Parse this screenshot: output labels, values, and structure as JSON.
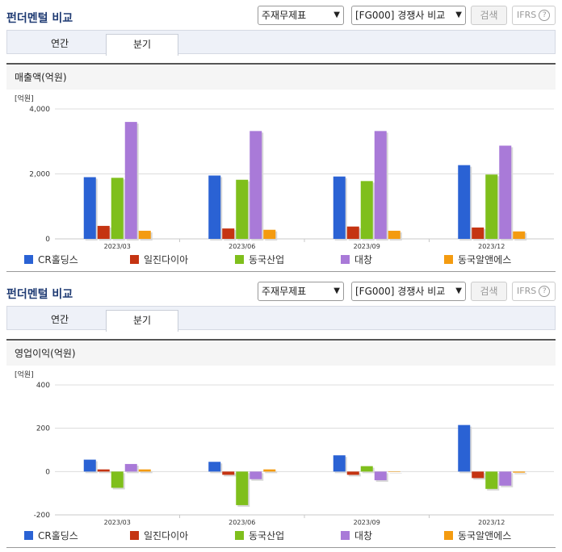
{
  "panels": [
    {
      "title": "펀더멘털 비교",
      "select1": "주재무제표",
      "select2": "[FG000] 경쟁사 비교",
      "search_button": "검색",
      "ifrs_label": "IFRS",
      "help_icon": "?",
      "tabs": [
        "연간",
        "분기"
      ],
      "active_tab": 1,
      "subtitle": "매출액(억원)"
    },
    {
      "title": "펀더멘털 비교",
      "select1": "주재무제표",
      "select2": "[FG000] 경쟁사 비교",
      "search_button": "검색",
      "ifrs_label": "IFRS",
      "help_icon": "?",
      "tabs": [
        "연간",
        "분기"
      ],
      "active_tab": 1,
      "subtitle": "영업이익(억원)"
    }
  ],
  "colors": {
    "CR홀딩스": "#2a62d4",
    "일진다이아": "#c53412",
    "동국산업": "#7fbf1c",
    "대창": "#a97ad8",
    "동국알앤에스": "#f49b10"
  },
  "chart_data": [
    {
      "type": "bar",
      "title": "매출액(억원)",
      "unit_label": "[억원]",
      "categories": [
        "2023/03",
        "2023/06",
        "2023/09",
        "2023/12"
      ],
      "ylim": [
        0,
        4000
      ],
      "yticks": [
        "0",
        "2,000",
        "4,000"
      ],
      "ytick_values": [
        0,
        2000,
        4000
      ],
      "grid": true,
      "legend_position": "bottom",
      "series": [
        {
          "name": "CR홀딩스",
          "values": [
            1900,
            1950,
            1920,
            2270
          ]
        },
        {
          "name": "일진다이아",
          "values": [
            400,
            320,
            380,
            350
          ]
        },
        {
          "name": "동국산업",
          "values": [
            1880,
            1820,
            1780,
            1980
          ]
        },
        {
          "name": "대창",
          "values": [
            3600,
            3320,
            3320,
            2870
          ]
        },
        {
          "name": "동국알앤에스",
          "values": [
            250,
            280,
            250,
            230
          ]
        }
      ]
    },
    {
      "type": "bar",
      "title": "영업이익(억원)",
      "unit_label": "[억원]",
      "categories": [
        "2023/03",
        "2023/06",
        "2023/09",
        "2023/12"
      ],
      "ylim": [
        -200,
        400
      ],
      "yticks": [
        "-200",
        "0",
        "200",
        "400"
      ],
      "ytick_values": [
        -200,
        0,
        200,
        400
      ],
      "grid": true,
      "legend_position": "bottom",
      "series": [
        {
          "name": "CR홀딩스",
          "values": [
            55,
            45,
            75,
            215
          ]
        },
        {
          "name": "일진다이아",
          "values": [
            10,
            -15,
            -15,
            -30
          ]
        },
        {
          "name": "동국산업",
          "values": [
            -75,
            -155,
            25,
            -80
          ]
        },
        {
          "name": "대창",
          "values": [
            35,
            -35,
            -40,
            -65
          ]
        },
        {
          "name": "동국알앤에스",
          "values": [
            10,
            10,
            -2,
            -5
          ]
        }
      ]
    }
  ]
}
